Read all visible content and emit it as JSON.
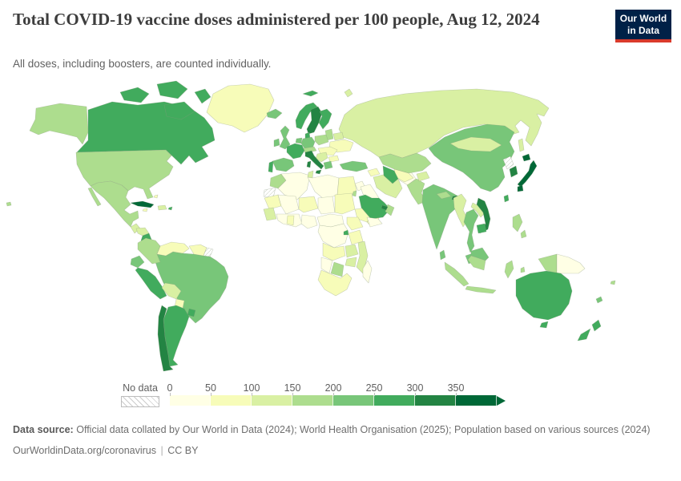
{
  "header": {
    "title": "Total COVID-19 vaccine doses administered per 100 people, Aug 12, 2024",
    "subtitle": "All doses, including boosters, are counted individually.",
    "logo": {
      "line1": "Our World",
      "line2": "in Data",
      "bg_color": "#002147",
      "accent_color": "#d93a2b"
    }
  },
  "legend": {
    "no_data_label": "No data",
    "tick_labels": [
      "0",
      "50",
      "100",
      "150",
      "200",
      "250",
      "300",
      "350"
    ]
  },
  "footer": {
    "source_label": "Data source:",
    "source_text": "Official data collated by Our World in Data (2024); World Health Organisation (2025); Population based on various sources (2024)",
    "link": "OurWorldinData.org/coronavirus",
    "separator": "|",
    "license": "CC BY"
  },
  "chart_data": {
    "type": "choropleth",
    "title": "Total COVID-19 vaccine doses administered per 100 people",
    "date": "Aug 12, 2024",
    "unit": "doses per 100 people",
    "legend": {
      "bin_size": 50,
      "thresholds": [
        0,
        50,
        100,
        150,
        200,
        250,
        300,
        350
      ],
      "colors": [
        "#ffffe5",
        "#f7fcb9",
        "#d9f0a3",
        "#addd8e",
        "#78c679",
        "#41ab5d",
        "#238443",
        "#006837"
      ],
      "no_data_pattern": "hatched"
    },
    "regions": [
      {
        "id": "canada",
        "name": "Canada",
        "value": 272
      },
      {
        "id": "usa",
        "name": "United States",
        "value": 199
      },
      {
        "id": "greenland",
        "name": "Greenland",
        "value": 75
      },
      {
        "id": "mexico",
        "name": "Mexico",
        "value": 175
      },
      {
        "id": "cuba",
        "name": "Cuba",
        "value": 390
      },
      {
        "id": "hispaniola",
        "name": "Dominican Republic & Haiti",
        "value": 120
      },
      {
        "id": "jamaica",
        "name": "Jamaica",
        "value": 75
      },
      {
        "id": "puerto-rico",
        "name": "Puerto Rico",
        "value": 280
      },
      {
        "id": "bahamas",
        "name": "Bahamas",
        "value": 95
      },
      {
        "id": "guatemala",
        "name": "Guatemala",
        "value": 140
      },
      {
        "id": "honduras",
        "name": "Honduras",
        "value": 135
      },
      {
        "id": "nicaragua-costa-rica-panama",
        "name": "Nicaragua, Costa Rica & Panama",
        "value": 250
      },
      {
        "id": "colombia",
        "name": "Colombia",
        "value": 180
      },
      {
        "id": "venezuela",
        "name": "Venezuela",
        "value": 95
      },
      {
        "id": "guyana-suriname",
        "name": "Guyana & Suriname",
        "value": 80
      },
      {
        "id": "french-guiana",
        "name": "French Guiana",
        "value": null
      },
      {
        "id": "ecuador",
        "name": "Ecuador",
        "value": 230
      },
      {
        "id": "peru",
        "name": "Peru",
        "value": 290
      },
      {
        "id": "brazil",
        "name": "Brazil",
        "value": 240
      },
      {
        "id": "bolivia",
        "name": "Bolivia",
        "value": 130
      },
      {
        "id": "paraguay",
        "name": "Paraguay",
        "value": 95
      },
      {
        "id": "uruguay",
        "name": "Uruguay",
        "value": 290
      },
      {
        "id": "argentina",
        "name": "Argentina",
        "value": 256
      },
      {
        "id": "chile",
        "name": "Chile",
        "value": 330
      },
      {
        "id": "iceland",
        "name": "Iceland",
        "value": 205
      },
      {
        "id": "norway",
        "name": "Norway",
        "value": 260
      },
      {
        "id": "sweden",
        "name": "Sweden",
        "value": 300
      },
      {
        "id": "finland",
        "name": "Finland",
        "value": 260
      },
      {
        "id": "denmark",
        "name": "Denmark",
        "value": 250
      },
      {
        "id": "baltics",
        "name": "Baltic states",
        "value": 160
      },
      {
        "id": "uk",
        "name": "United Kingdom",
        "value": 224
      },
      {
        "id": "ireland",
        "name": "Ireland",
        "value": 210
      },
      {
        "id": "benelux",
        "name": "Belgium & Netherlands",
        "value": 230
      },
      {
        "id": "germany",
        "name": "Germany",
        "value": 230
      },
      {
        "id": "poland",
        "name": "Poland",
        "value": 155
      },
      {
        "id": "belarus",
        "name": "Belarus",
        "value": 130
      },
      {
        "id": "ukraine",
        "name": "Ukraine",
        "value": 70
      },
      {
        "id": "france",
        "name": "France",
        "value": 265
      },
      {
        "id": "czech-austria-switzerland",
        "name": "Czechia, Austria & Switzerland",
        "value": 180
      },
      {
        "id": "hungary-romania",
        "name": "Hungary & Romania",
        "value": 90
      },
      {
        "id": "balkans",
        "name": "Western Balkans",
        "value": 120
      },
      {
        "id": "bulgaria",
        "name": "Bulgaria",
        "value": 95
      },
      {
        "id": "greece",
        "name": "Greece",
        "value": 215
      },
      {
        "id": "italy",
        "name": "Italy",
        "value": 310
      },
      {
        "id": "spain",
        "name": "Spain",
        "value": 215
      },
      {
        "id": "portugal",
        "name": "Portugal",
        "value": 272
      },
      {
        "id": "turkey",
        "name": "Turkey",
        "value": 215
      },
      {
        "id": "caucasus",
        "name": "Caucasus",
        "value": 90
      },
      {
        "id": "russia",
        "name": "Russia",
        "value": 120
      },
      {
        "id": "kazakhstan",
        "name": "Kazakhstan",
        "value": 160
      },
      {
        "id": "uzbekistan",
        "name": "Uzbekistan",
        "value": 95
      },
      {
        "id": "turkmenistan",
        "name": "Turkmenistan",
        "value": 260
      },
      {
        "id": "kyrgyzstan-tajikistan",
        "name": "Kyrgyzstan & Tajikistan",
        "value": 125
      },
      {
        "id": "iran",
        "name": "Iran",
        "value": 125
      },
      {
        "id": "afghanistan",
        "name": "Afghanistan",
        "value": 40
      },
      {
        "id": "pakistan",
        "name": "Pakistan",
        "value": 160
      },
      {
        "id": "iraq",
        "name": "Iraq",
        "value": 45
      },
      {
        "id": "syria-jordan",
        "name": "Syria & Jordan",
        "value": 30
      },
      {
        "id": "israel",
        "name": "Israel",
        "value": 185
      },
      {
        "id": "saudi-arabia",
        "name": "Saudi Arabia",
        "value": 255
      },
      {
        "id": "yemen",
        "name": "Yemen",
        "value": 35
      },
      {
        "id": "oman",
        "name": "Oman",
        "value": 190
      },
      {
        "id": "uae-qatar",
        "name": "United Arab Emirates & Qatar",
        "value": 320
      },
      {
        "id": "india",
        "name": "India",
        "value": 226
      },
      {
        "id": "sri-lanka",
        "name": "Sri Lanka",
        "value": 205
      },
      {
        "id": "nepal",
        "name": "Nepal",
        "value": 155
      },
      {
        "id": "bhutan",
        "name": "Bhutan",
        "value": 310
      },
      {
        "id": "bangladesh",
        "name": "Bangladesh",
        "value": 190
      },
      {
        "id": "myanmar",
        "name": "Myanmar",
        "value": 130
      },
      {
        "id": "thailand",
        "name": "Thailand",
        "value": 235
      },
      {
        "id": "laos",
        "name": "Laos",
        "value": 115
      },
      {
        "id": "vietnam",
        "name": "Vietnam",
        "value": 310
      },
      {
        "id": "cambodia",
        "name": "Cambodia",
        "value": 290
      },
      {
        "id": "malaysia",
        "name": "Malaysia",
        "value": 225
      },
      {
        "id": "china",
        "name": "China",
        "value": 245
      },
      {
        "id": "mongolia",
        "name": "Mongolia",
        "value": 135
      },
      {
        "id": "north-korea",
        "name": "North Korea",
        "value": null
      },
      {
        "id": "south-korea",
        "name": "South Korea",
        "value": 315
      },
      {
        "id": "japan",
        "name": "Japan",
        "value": 360
      },
      {
        "id": "taiwan",
        "name": "Taiwan",
        "value": 280
      },
      {
        "id": "philippines",
        "name": "Philippines",
        "value": 170
      },
      {
        "id": "indonesia",
        "name": "Indonesia",
        "value": 160
      },
      {
        "id": "papua-new-guinea",
        "name": "Papua New Guinea",
        "value": 10
      },
      {
        "id": "morocco",
        "name": "Morocco",
        "value": 160
      },
      {
        "id": "western-sahara",
        "name": "Western Sahara",
        "value": null
      },
      {
        "id": "algeria",
        "name": "Algeria",
        "value": 35
      },
      {
        "id": "tunisia",
        "name": "Tunisia",
        "value": 115
      },
      {
        "id": "libya",
        "name": "Libya",
        "value": 40
      },
      {
        "id": "egypt",
        "name": "Egypt",
        "value": 95
      },
      {
        "id": "mauritania",
        "name": "Mauritania",
        "value": 60
      },
      {
        "id": "mali",
        "name": "Mali",
        "value": 40
      },
      {
        "id": "niger",
        "name": "Niger",
        "value": 60
      },
      {
        "id": "chad",
        "name": "Chad",
        "value": 30
      },
      {
        "id": "sudan",
        "name": "Sudan",
        "value": 60
      },
      {
        "id": "senegal-guinea",
        "name": "Senegal & Guinea",
        "value": 120
      },
      {
        "id": "west-africa-coast",
        "name": "Côte d'Ivoire & coastal West Africa",
        "value": 45
      },
      {
        "id": "ghana",
        "name": "Ghana",
        "value": 70
      },
      {
        "id": "nigeria",
        "name": "Nigeria",
        "value": 45
      },
      {
        "id": "cameroon-car",
        "name": "Cameroon & Central African Republic",
        "value": 15
      },
      {
        "id": "ethiopia",
        "name": "Ethiopia",
        "value": 60
      },
      {
        "id": "somalia",
        "name": "Somalia",
        "value": 60
      },
      {
        "id": "uganda-kenya",
        "name": "Uganda & Kenya",
        "value": 55
      },
      {
        "id": "drc",
        "name": "Democratic Republic of Congo",
        "value": 15
      },
      {
        "id": "rwanda",
        "name": "Rwanda",
        "value": 260
      },
      {
        "id": "tanzania",
        "name": "Tanzania",
        "value": 60
      },
      {
        "id": "angola",
        "name": "Angola",
        "value": 55
      },
      {
        "id": "zambia",
        "name": "Zambia",
        "value": 105
      },
      {
        "id": "mozambique",
        "name": "Mozambique",
        "value": 105
      },
      {
        "id": "zimbabwe",
        "name": "Zimbabwe",
        "value": 105
      },
      {
        "id": "botswana",
        "name": "Botswana",
        "value": 160
      },
      {
        "id": "namibia",
        "name": "Namibia",
        "value": 45
      },
      {
        "id": "south-africa",
        "name": "South Africa",
        "value": 65
      },
      {
        "id": "madagascar",
        "name": "Madagascar",
        "value": 20
      },
      {
        "id": "australia",
        "name": "Australia",
        "value": 265
      },
      {
        "id": "new-zealand",
        "name": "New Zealand",
        "value": 255
      },
      {
        "id": "new-caledonia",
        "name": "New Caledonia",
        "value": 210
      },
      {
        "id": "fiji",
        "name": "Fiji",
        "value": 150
      }
    ]
  }
}
